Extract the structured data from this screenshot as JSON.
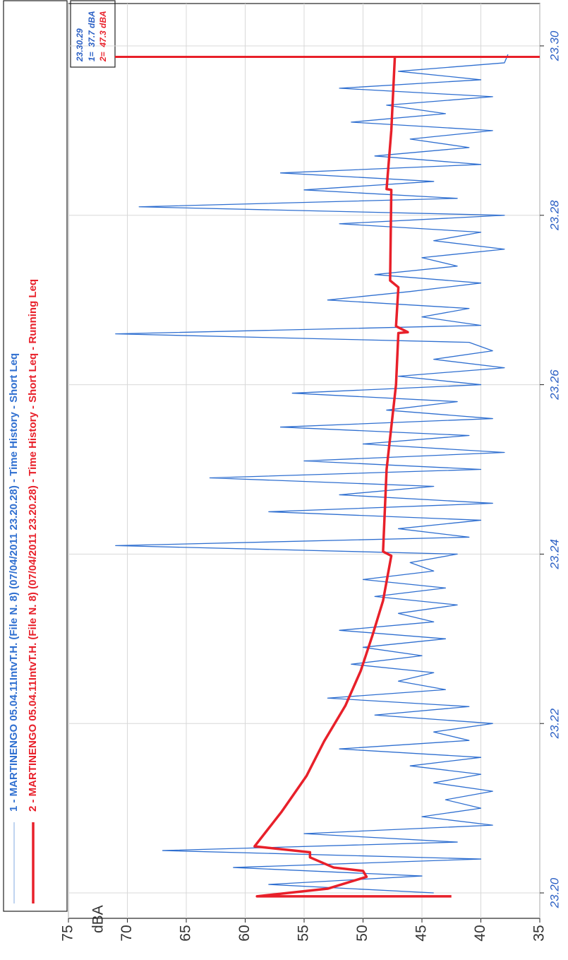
{
  "chart_data": {
    "type": "line",
    "legend": "top-left",
    "grid": true,
    "y_label": "dBA",
    "xlim": [
      23.197,
      23.305
    ],
    "ylim": [
      35,
      75
    ],
    "xticks": [
      {
        "value": 23.2,
        "label": "23.20"
      },
      23.22,
      23.24,
      23.26,
      23.28,
      {
        "value": 23.3,
        "label": "23.30"
      }
    ],
    "yticks": [
      35,
      40,
      45,
      50,
      55,
      60,
      65,
      70,
      75
    ],
    "cursor": {
      "x": 23.2987,
      "label": "23.30.29",
      "color": "#e8202a",
      "readings": [
        {
          "text": "1=  37.7 dBA",
          "color": "#2a5fc4"
        },
        {
          "text": "2=  47.3 dBA",
          "color": "#e8202a"
        }
      ]
    },
    "series": [
      {
        "name": "1 - MARTINENGO 05.04.11IntvT.H. (File N. 8) (07/04/2011 23.20.28) - Time History - Short Leq",
        "color": "#2f6fd0",
        "width": 1.3,
        "x": [
          23.2,
          23.201,
          23.202,
          23.203,
          23.204,
          23.205,
          23.206,
          23.207,
          23.208,
          23.209,
          23.21,
          23.211,
          23.212,
          23.213,
          23.214,
          23.215,
          23.216,
          23.217,
          23.218,
          23.219,
          23.22,
          23.221,
          23.222,
          23.223,
          23.224,
          23.225,
          23.226,
          23.227,
          23.228,
          23.229,
          23.23,
          23.231,
          23.232,
          23.233,
          23.234,
          23.235,
          23.236,
          23.237,
          23.238,
          23.239,
          23.24,
          23.241,
          23.242,
          23.243,
          23.244,
          23.245,
          23.246,
          23.247,
          23.248,
          23.249,
          23.25,
          23.251,
          23.252,
          23.253,
          23.254,
          23.255,
          23.256,
          23.257,
          23.258,
          23.259,
          23.26,
          23.261,
          23.262,
          23.263,
          23.264,
          23.265,
          23.266,
          23.267,
          23.268,
          23.269,
          23.27,
          23.271,
          23.272,
          23.273,
          23.274,
          23.275,
          23.276,
          23.277,
          23.278,
          23.279,
          23.28,
          23.281,
          23.282,
          23.283,
          23.284,
          23.285,
          23.286,
          23.287,
          23.288,
          23.289,
          23.29,
          23.291,
          23.292,
          23.293,
          23.294,
          23.295,
          23.296,
          23.297,
          23.298,
          23.299
        ],
        "values": [
          44,
          58,
          45,
          61,
          40,
          67,
          42,
          55,
          39,
          45,
          40,
          43,
          39,
          44,
          40,
          46,
          40,
          52,
          41,
          44,
          39,
          49,
          41,
          53,
          43,
          47,
          44,
          51,
          45,
          50,
          43,
          52,
          44,
          47,
          42,
          49,
          43,
          50,
          44,
          46,
          42,
          71,
          41,
          47,
          40,
          58,
          39,
          52,
          44,
          63,
          40,
          55,
          38,
          50,
          41,
          57,
          39,
          48,
          42,
          56,
          40,
          47,
          38,
          44,
          39,
          41,
          71,
          40,
          45,
          41,
          53,
          46,
          40,
          49,
          42,
          45,
          38,
          44,
          40,
          52,
          38,
          69,
          42,
          55,
          44,
          57,
          40,
          49,
          41,
          46,
          39,
          51,
          43,
          48,
          39,
          52,
          40,
          47,
          38,
          37.7
        ]
      },
      {
        "name": "2 - MARTINENGO 05.04.11IntvT.H. (File N. 8) (07/04/2011 23.20.28) - Time History - Short Leq - Running Leq",
        "color": "#e8202a",
        "width": 3.5,
        "x": [
          23.1996,
          23.1996,
          23.2005,
          23.2019,
          23.2026,
          23.203,
          23.2042,
          23.2048,
          23.2055,
          23.2096,
          23.2138,
          23.2179,
          23.2221,
          23.2262,
          23.2304,
          23.2345,
          23.2398,
          23.2403,
          23.25,
          23.26,
          23.2661,
          23.2662,
          23.2669,
          23.2715,
          23.2723,
          23.283,
          23.2831,
          23.29,
          23.2987
        ],
        "values": [
          42.5,
          59.0,
          53.0,
          49.7,
          50.0,
          52.5,
          54.5,
          54.5,
          59.2,
          56.9,
          54.8,
          53.3,
          51.5,
          50.2,
          49.2,
          48.3,
          47.6,
          48.3,
          48.0,
          47.2,
          47.0,
          46.2,
          47.2,
          47.0,
          47.7,
          47.6,
          48.0,
          47.6,
          47.3
        ]
      }
    ]
  }
}
